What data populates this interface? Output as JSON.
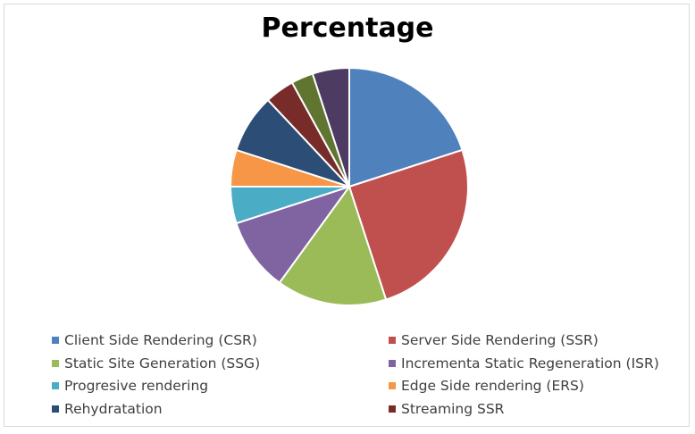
{
  "chart_data": {
    "type": "pie",
    "title": "Percentage",
    "slices": [
      {
        "label": "Client Side Rendering (CSR)",
        "value": 20,
        "color": "#4f81bd"
      },
      {
        "label": "Server Side Rendering (SSR)",
        "value": 25,
        "color": "#c0504d"
      },
      {
        "label": "Static Site Generation (SSG)",
        "value": 15,
        "color": "#9bbb59"
      },
      {
        "label": "Incrementa Static Regeneration (ISR)",
        "value": 10,
        "color": "#8064a2"
      },
      {
        "label": "Progresive rendering",
        "value": 5,
        "color": "#4bacc6"
      },
      {
        "label": "Edge Side rendering (ERS)",
        "value": 5,
        "color": "#f79646"
      },
      {
        "label": "Rehydratation",
        "value": 8,
        "color": "#2c4d75"
      },
      {
        "label": "Streaming SSR",
        "value": 4,
        "color": "#772c2a"
      },
      {
        "label": "",
        "value": 3,
        "color": "#5f7530"
      },
      {
        "label": "",
        "value": 5,
        "color": "#4d3b62"
      }
    ],
    "legend_position": "bottom"
  }
}
